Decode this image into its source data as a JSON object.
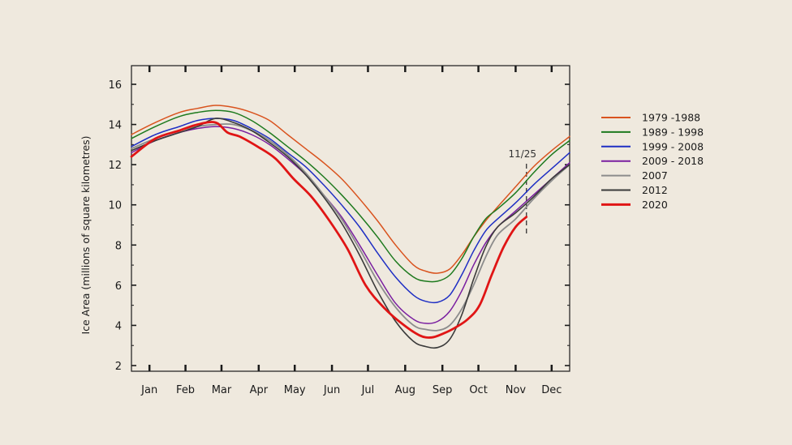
{
  "chart_data": {
    "type": "line",
    "title": "",
    "xlabel": "",
    "ylabel": "Ice Area (millions of square kilometres)",
    "ylim": [
      2,
      17
    ],
    "yticks": [
      2,
      4,
      6,
      8,
      10,
      12,
      14,
      16
    ],
    "xlim": [
      0,
      365
    ],
    "months": [
      {
        "label": "Jan",
        "day": 15
      },
      {
        "label": "Feb",
        "day": 45
      },
      {
        "label": "Mar",
        "day": 75
      },
      {
        "label": "Apr",
        "day": 106
      },
      {
        "label": "May",
        "day": 136
      },
      {
        "label": "Jun",
        "day": 167
      },
      {
        "label": "Jul",
        "day": 197
      },
      {
        "label": "Aug",
        "day": 228
      },
      {
        "label": "Sep",
        "day": 259
      },
      {
        "label": "Oct",
        "day": 289
      },
      {
        "label": "Nov",
        "day": 320
      },
      {
        "label": "Dec",
        "day": 350
      }
    ],
    "grid": false,
    "legend_position": "right",
    "marker": {
      "label": "11/25",
      "day": 329
    },
    "series": [
      {
        "name": "1979 -1988",
        "color": "#d9531e",
        "width": 1.5,
        "x": [
          0,
          20,
          40,
          55,
          70,
          85,
          100,
          115,
          130,
          145,
          160,
          175,
          190,
          205,
          220,
          235,
          245,
          255,
          265,
          275,
          285,
          295,
          305,
          320,
          335,
          350,
          365
        ],
        "y": [
          13.5,
          14.1,
          14.6,
          14.8,
          14.95,
          14.85,
          14.6,
          14.2,
          13.5,
          12.8,
          12.1,
          11.3,
          10.3,
          9.2,
          8.0,
          7.0,
          6.7,
          6.6,
          6.8,
          7.5,
          8.4,
          9.2,
          9.9,
          10.9,
          11.9,
          12.7,
          13.4
        ]
      },
      {
        "name": "1989 - 1998",
        "color": "#1e7a1e",
        "width": 1.5,
        "x": [
          0,
          20,
          40,
          55,
          70,
          85,
          100,
          115,
          130,
          145,
          160,
          175,
          190,
          205,
          220,
          235,
          245,
          255,
          265,
          275,
          285,
          295,
          305,
          320,
          335,
          350,
          365
        ],
        "y": [
          13.3,
          13.9,
          14.4,
          14.6,
          14.7,
          14.6,
          14.2,
          13.6,
          12.9,
          12.2,
          11.4,
          10.5,
          9.5,
          8.4,
          7.2,
          6.4,
          6.2,
          6.2,
          6.5,
          7.3,
          8.4,
          9.3,
          9.8,
          10.6,
          11.6,
          12.5,
          13.2
        ]
      },
      {
        "name": "1999 - 2008",
        "color": "#1f2fc4",
        "width": 1.5,
        "x": [
          0,
          20,
          40,
          55,
          70,
          85,
          100,
          115,
          130,
          145,
          160,
          175,
          190,
          205,
          220,
          235,
          245,
          255,
          265,
          275,
          285,
          295,
          305,
          320,
          335,
          350,
          365
        ],
        "y": [
          12.9,
          13.5,
          13.9,
          14.2,
          14.3,
          14.2,
          13.8,
          13.3,
          12.6,
          11.9,
          11.0,
          10.0,
          8.9,
          7.6,
          6.4,
          5.5,
          5.2,
          5.15,
          5.5,
          6.5,
          7.7,
          8.7,
          9.3,
          10.1,
          11.0,
          11.8,
          12.6
        ]
      },
      {
        "name": "2009 - 2018",
        "color": "#7a1fa0",
        "width": 1.5,
        "x": [
          0,
          20,
          40,
          55,
          70,
          85,
          100,
          115,
          130,
          145,
          160,
          175,
          190,
          205,
          220,
          235,
          245,
          255,
          265,
          275,
          285,
          295,
          305,
          320,
          335,
          350,
          365
        ],
        "y": [
          12.6,
          13.2,
          13.6,
          13.8,
          13.9,
          13.8,
          13.5,
          13.0,
          12.3,
          11.5,
          10.5,
          9.4,
          8.0,
          6.5,
          5.1,
          4.3,
          4.1,
          4.2,
          4.7,
          5.7,
          7.0,
          8.1,
          8.9,
          9.7,
          10.5,
          11.3,
          12.1
        ]
      },
      {
        "name": "2007",
        "color": "#8c8c8c",
        "width": 1.8,
        "x": [
          0,
          20,
          40,
          55,
          70,
          85,
          100,
          115,
          130,
          145,
          160,
          175,
          190,
          205,
          220,
          235,
          245,
          255,
          265,
          275,
          285,
          295,
          305,
          320,
          335,
          350,
          365
        ],
        "y": [
          12.8,
          13.3,
          13.7,
          13.9,
          14.0,
          14.0,
          13.7,
          13.2,
          12.5,
          11.6,
          10.5,
          9.3,
          7.8,
          6.2,
          4.9,
          4.0,
          3.8,
          3.75,
          4.0,
          4.8,
          6.0,
          7.4,
          8.5,
          9.3,
          10.3,
          11.2,
          12.0
        ]
      },
      {
        "name": "2012",
        "color": "#3a3a3a",
        "width": 1.6,
        "x": [
          0,
          20,
          40,
          55,
          70,
          85,
          100,
          115,
          130,
          145,
          160,
          175,
          190,
          205,
          220,
          235,
          245,
          255,
          265,
          275,
          285,
          295,
          305,
          320,
          335,
          350,
          365
        ],
        "y": [
          12.7,
          13.2,
          13.6,
          13.9,
          14.3,
          14.1,
          13.7,
          13.1,
          12.4,
          11.5,
          10.4,
          9.1,
          7.5,
          5.7,
          4.2,
          3.2,
          2.95,
          2.9,
          3.3,
          4.5,
          6.3,
          7.9,
          8.9,
          9.6,
          10.4,
          11.3,
          12.0
        ]
      },
      {
        "name": "2020",
        "color": "#e01515",
        "width": 2.8,
        "x": [
          0,
          20,
          40,
          55,
          70,
          80,
          90,
          105,
          120,
          135,
          150,
          165,
          180,
          195,
          210,
          225,
          240,
          250,
          260,
          270,
          280,
          290,
          300,
          310,
          320,
          329
        ],
        "y": [
          12.4,
          13.3,
          13.7,
          14.0,
          14.1,
          13.6,
          13.4,
          12.9,
          12.3,
          11.3,
          10.4,
          9.2,
          7.8,
          6.0,
          4.9,
          4.1,
          3.5,
          3.4,
          3.6,
          3.9,
          4.3,
          5.0,
          6.5,
          7.9,
          8.9,
          9.4
        ]
      }
    ]
  }
}
